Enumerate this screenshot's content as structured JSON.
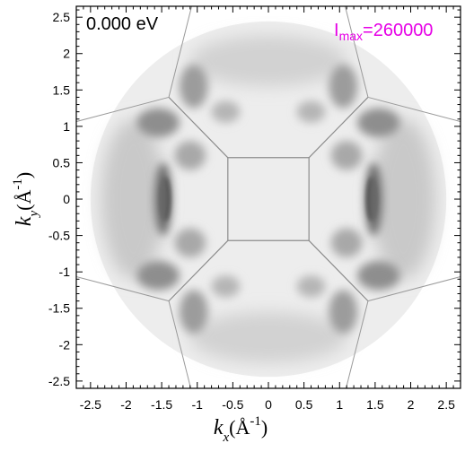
{
  "chart_data": {
    "type": "heatmap",
    "energy_label": "0.000 eV",
    "intensity_max": {
      "prefix": "I",
      "subscript": "max",
      "value": "=260000",
      "color": "#e600e6"
    },
    "xlabel": {
      "italic": "k",
      "sub": "x",
      "unit": "(Å",
      "sup": "-1",
      "close": ")"
    },
    "ylabel": {
      "italic": "k",
      "sub": "y",
      "unit": "(Å",
      "sup": "-1",
      "close": ")"
    },
    "xlim": [
      -2.7,
      2.7
    ],
    "ylim": [
      -2.6,
      2.65
    ],
    "x_ticks": [
      -2.5,
      -2,
      -1.5,
      -1,
      -0.5,
      0,
      0.5,
      1,
      1.5,
      2,
      2.5
    ],
    "x_tick_labels": [
      "-2.5",
      "-2",
      "-1.5",
      "-1",
      "-0.5",
      "0",
      "0.5",
      "1",
      "1.5",
      "2",
      "2.5"
    ],
    "y_ticks": [
      -2.5,
      -2,
      -1.5,
      -1,
      -0.5,
      0,
      0.5,
      1,
      1.5,
      2,
      2.5
    ],
    "y_tick_labels": [
      "-2.5",
      "-2",
      "-1.5",
      "-1",
      "-0.5",
      "0",
      "0.5",
      "1",
      "1.5",
      "2",
      "2.5"
    ],
    "detector_radius": 2.5,
    "colormap": "grayscale (dark = high intensity)",
    "brillouin_zone": {
      "central_square": [
        [
          -0.57,
          0.57
        ],
        [
          0.57,
          0.57
        ],
        [
          0.57,
          -0.57
        ],
        [
          -0.57,
          -0.57
        ]
      ],
      "outer_vertices": [
        [
          1.4,
          1.4
        ],
        [
          -1.4,
          1.4
        ],
        [
          -1.4,
          -1.4
        ],
        [
          1.4,
          -1.4
        ]
      ],
      "outer_lines": [
        [
          [
            1.4,
            1.4
          ],
          [
            2.8,
            1.04
          ]
        ],
        [
          [
            1.4,
            1.4
          ],
          [
            1.04,
            2.8
          ]
        ],
        [
          [
            -1.4,
            1.4
          ],
          [
            -2.8,
            1.04
          ]
        ],
        [
          [
            -1.4,
            1.4
          ],
          [
            -1.04,
            2.8
          ]
        ],
        [
          [
            -1.4,
            -1.4
          ],
          [
            -2.8,
            -1.04
          ]
        ],
        [
          [
            -1.4,
            -1.4
          ],
          [
            -1.04,
            -2.8
          ]
        ],
        [
          [
            1.4,
            -1.4
          ],
          [
            2.8,
            -1.04
          ]
        ],
        [
          [
            1.4,
            -1.4
          ],
          [
            1.04,
            -2.8
          ]
        ]
      ]
    }
  }
}
